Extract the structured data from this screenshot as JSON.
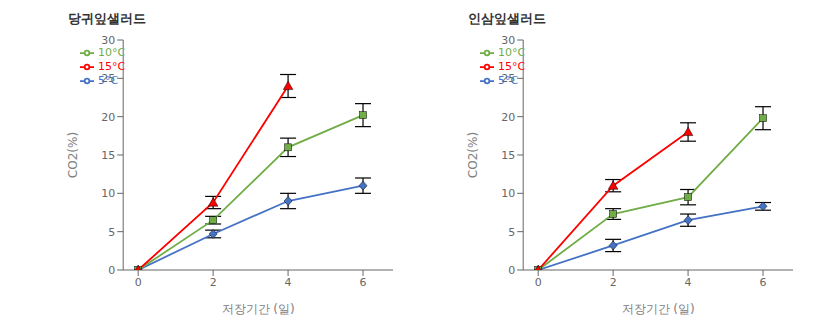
{
  "chart_data": [
    {
      "type": "line",
      "title": "당귀잎샐러드",
      "xlabel": "저장기간 (일)",
      "ylabel": "CO2(%)",
      "x": [
        0,
        2,
        4,
        6
      ],
      "xlim": [
        -0.4,
        6.8
      ],
      "xticks": [
        0,
        2,
        4,
        6
      ],
      "ylim": [
        0,
        30
      ],
      "yticks": [
        0,
        5,
        10,
        15,
        20,
        25,
        30
      ],
      "grid": false,
      "legend": "upper left",
      "series": [
        {
          "name": "5°C",
          "color": "#4472c4",
          "marker": "diamond",
          "values": [
            0,
            4.7,
            9.0,
            11.0
          ],
          "yerr": [
            0,
            0.5,
            1.0,
            1.0
          ]
        },
        {
          "name": "10°C",
          "color": "#70ad47",
          "marker": "square",
          "values": [
            0,
            6.5,
            16.0,
            20.2
          ],
          "yerr": [
            0,
            0.5,
            1.2,
            1.5
          ]
        },
        {
          "name": "15°C",
          "color": "#ff0000",
          "marker": "triangle",
          "values": [
            0,
            8.8,
            24.0,
            null
          ],
          "yerr": [
            0,
            0.8,
            1.5,
            null
          ]
        }
      ]
    },
    {
      "type": "line",
      "title": "인삼잎샐러드",
      "xlabel": "저장기간 (일)",
      "ylabel": "CO2(%)",
      "x": [
        0,
        2,
        4,
        6
      ],
      "xlim": [
        -0.4,
        6.8
      ],
      "xticks": [
        0,
        2,
        4,
        6
      ],
      "ylim": [
        0,
        30
      ],
      "yticks": [
        0,
        5,
        10,
        15,
        20,
        25,
        30
      ],
      "grid": false,
      "legend": "upper left",
      "series": [
        {
          "name": "5°C",
          "color": "#4472c4",
          "marker": "diamond",
          "values": [
            0,
            3.2,
            6.5,
            8.3
          ],
          "yerr": [
            0,
            0.8,
            0.8,
            0.5
          ]
        },
        {
          "name": "10°C",
          "color": "#70ad47",
          "marker": "square",
          "values": [
            0,
            7.3,
            9.5,
            19.8
          ],
          "yerr": [
            0,
            0.7,
            1.0,
            1.5
          ]
        },
        {
          "name": "15°C",
          "color": "#ff0000",
          "marker": "triangle",
          "values": [
            0,
            11.0,
            18.0,
            null
          ],
          "yerr": [
            0,
            0.8,
            1.2,
            null
          ]
        }
      ]
    }
  ]
}
